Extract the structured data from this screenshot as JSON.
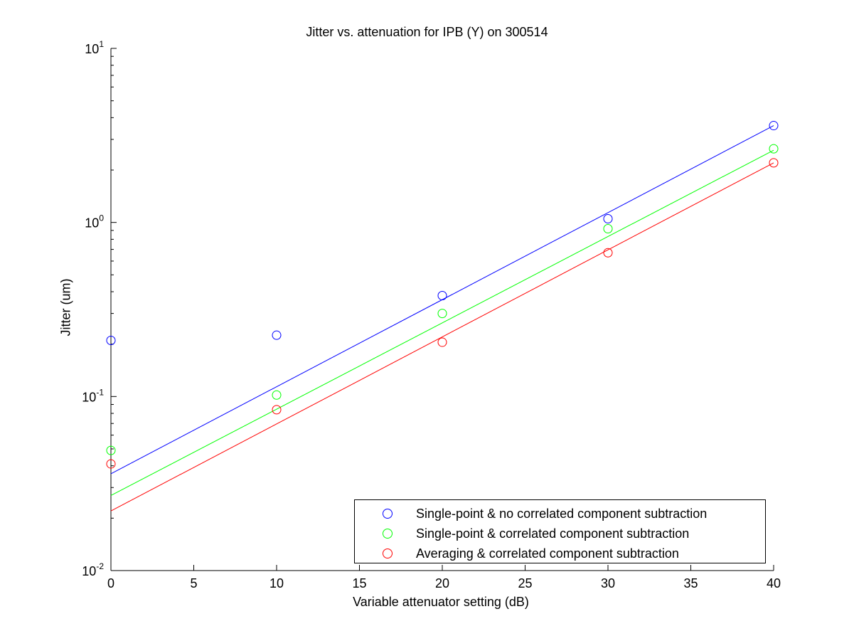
{
  "chart_data": {
    "type": "scatter",
    "title": "Jitter vs. attenuation for IPB (Y) on 300514",
    "xlabel": "Variable attenuator setting (dB)",
    "ylabel": "Jitter (um)",
    "xlim": [
      0,
      40
    ],
    "ylim": [
      0.01,
      10
    ],
    "yscale": "log",
    "x_ticks": [
      "0",
      "5",
      "10",
      "15",
      "20",
      "25",
      "30",
      "35",
      "40"
    ],
    "y_ticks": [
      {
        "base": "10",
        "exp": "-2",
        "value": 0.01
      },
      {
        "base": "10",
        "exp": "-1",
        "value": 0.1
      },
      {
        "base": "10",
        "exp": "0",
        "value": 1
      },
      {
        "base": "10",
        "exp": "1",
        "value": 10
      }
    ],
    "grid": false,
    "legend_position": "bottom-right",
    "series": [
      {
        "name": "Single-point & no correlated component subtraction",
        "color": "#0000ff",
        "x": [
          0,
          10,
          20,
          30,
          40
        ],
        "y": [
          0.21,
          0.225,
          0.38,
          1.05,
          3.6
        ],
        "fit": {
          "x": [
            0,
            40
          ],
          "y": [
            0.036,
            3.6
          ]
        }
      },
      {
        "name": "Single-point & correlated component subtraction",
        "color": "#00ff00",
        "x": [
          0,
          10,
          20,
          30,
          40
        ],
        "y": [
          0.049,
          0.102,
          0.3,
          0.92,
          2.65
        ],
        "fit": {
          "x": [
            0,
            40
          ],
          "y": [
            0.027,
            2.6
          ]
        }
      },
      {
        "name": "Averaging & correlated component subtraction",
        "color": "#ff0000",
        "x": [
          0,
          10,
          20,
          30,
          40
        ],
        "y": [
          0.041,
          0.084,
          0.205,
          0.67,
          2.2
        ],
        "fit": {
          "x": [
            0,
            40
          ],
          "y": [
            0.022,
            2.2
          ]
        }
      }
    ]
  }
}
